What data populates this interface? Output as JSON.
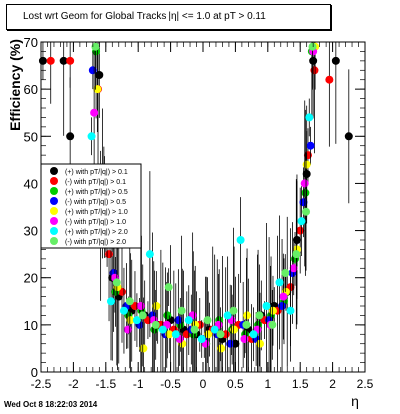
{
  "title": "Lost wrt Geom for Global Tracks",
  "title_suffix": "|η| <= 1.0 at pT > 0.11",
  "footer": "Wed Oct  8 18:22:03 2014",
  "chart_data": {
    "type": "scatter",
    "title": "Lost wrt Geom for Global Tracks",
    "xlabel": "η",
    "ylabel": "Efficiency (%)",
    "xlim": [
      -2.5,
      2.5
    ],
    "ylim": [
      0,
      70
    ],
    "xticks": [
      "-2.5",
      "-2",
      "-1.5",
      "-1",
      "-0.5",
      "0",
      "0.5",
      "1",
      "1.5",
      "2",
      "2.5"
    ],
    "yticks": [
      "0",
      "10",
      "20",
      "30",
      "40",
      "50",
      "60",
      "70"
    ],
    "grid": false,
    "legend_position": "left-middle",
    "series": [
      {
        "name": "(+) with pT/|q|) > 0.1",
        "color": "#000000",
        "x": [
          -2.47,
          -2.15,
          -2.05,
          -1.6,
          -1.5,
          -1.4,
          -1.3,
          -1.1,
          -0.9,
          -0.7,
          -0.5,
          -0.3,
          -0.1,
          0.1,
          0.3,
          0.5,
          0.7,
          0.9,
          1.1,
          1.3,
          1.45,
          1.6,
          1.7,
          2.05,
          2.25
        ],
        "y": [
          66,
          66,
          50,
          63,
          30,
          20,
          16,
          13,
          12,
          10,
          11,
          9,
          8,
          9,
          7,
          6,
          9,
          12,
          14,
          17,
          28,
          42,
          66,
          66,
          50
        ]
      },
      {
        "name": "(-) with pT/|q|) > 0.1",
        "color": "#ff0000",
        "x": [
          -2.35,
          -2.05,
          -1.62,
          -1.45,
          -1.25,
          -1.05,
          -0.85,
          -0.65,
          -0.45,
          -0.25,
          -0.05,
          0.15,
          0.35,
          0.55,
          0.75,
          0.95,
          1.15,
          1.35,
          1.5,
          1.62,
          1.72,
          1.95
        ],
        "y": [
          66,
          66,
          60,
          25,
          17,
          14,
          11,
          10,
          9,
          8,
          10,
          9,
          8,
          10,
          7,
          11,
          13,
          18,
          30,
          46,
          64,
          62
        ]
      },
      {
        "name": "(+) with pT/|q|) > 0.5",
        "color": "#00cc00",
        "x": [
          -1.65,
          -1.52,
          -1.35,
          -1.15,
          -0.95,
          -0.75,
          -0.55,
          -0.35,
          -0.15,
          0.05,
          0.25,
          0.45,
          0.65,
          0.85,
          1.05,
          1.25,
          1.42,
          1.58,
          1.68
        ],
        "y": [
          68,
          35,
          17,
          12,
          13,
          9,
          12,
          10,
          8,
          6,
          11,
          9,
          8,
          10,
          12,
          15,
          24,
          38,
          68
        ]
      },
      {
        "name": "(-) with pT/|q|) > 0.5",
        "color": "#0000ff",
        "x": [
          -1.7,
          -1.55,
          -1.38,
          -1.18,
          -0.98,
          -0.78,
          -0.58,
          -0.38,
          -0.18,
          0.02,
          0.22,
          0.42,
          0.62,
          0.82,
          1.02,
          1.22,
          1.38,
          1.55,
          1.66
        ],
        "y": [
          64,
          40,
          21,
          14,
          10,
          12,
          8,
          11,
          9,
          7,
          8,
          6,
          10,
          7,
          11,
          14,
          21,
          36,
          48
        ]
      },
      {
        "name": "(+) with pT/|q|) > 1.0",
        "color": "#ffff00",
        "x": [
          -1.63,
          -1.48,
          -1.32,
          -1.12,
          -0.92,
          -0.72,
          -0.52,
          -0.32,
          -0.12,
          0.08,
          0.28,
          0.48,
          0.68,
          0.88,
          1.08,
          1.28,
          1.45,
          1.6,
          1.73
        ],
        "y": [
          60,
          28,
          18,
          11,
          5,
          14,
          8,
          6,
          10,
          8,
          5,
          9,
          12,
          6,
          13,
          17,
          26,
          44,
          69
        ]
      },
      {
        "name": "(-) with pT/|q|) > 1.0",
        "color": "#ff00ff",
        "x": [
          -1.68,
          -1.53,
          -1.36,
          -1.16,
          -0.96,
          -0.76,
          -0.56,
          -0.36,
          -0.16,
          0.04,
          0.24,
          0.44,
          0.64,
          0.84,
          1.04,
          1.24,
          1.4,
          1.57,
          1.7
        ],
        "y": [
          55,
          37,
          20,
          9,
          14,
          11,
          10,
          7,
          12,
          6,
          10,
          11,
          7,
          9,
          10,
          16,
          22,
          40,
          68
        ]
      },
      {
        "name": "(+) with pT/|q|) > 2.0",
        "color": "#00ffff",
        "x": [
          -1.72,
          -1.58,
          -1.42,
          -1.22,
          -1.02,
          -0.82,
          -0.62,
          -0.42,
          -0.22,
          -0.02,
          0.18,
          0.38,
          0.58,
          0.78,
          0.98,
          1.18,
          1.35,
          1.52,
          1.64
        ],
        "y": [
          50,
          31,
          15,
          13,
          11,
          25,
          9,
          8,
          11,
          7,
          9,
          12,
          28,
          8,
          14,
          19,
          13,
          32,
          54
        ]
      },
      {
        "name": "(-) with pT/|q|) > 2.0",
        "color": "#66ee66",
        "x": [
          -1.66,
          -1.5,
          -1.33,
          -1.13,
          -0.93,
          -0.73,
          -0.53,
          -0.33,
          -0.13,
          0.07,
          0.27,
          0.47,
          0.67,
          0.87,
          1.07,
          1.27,
          1.44,
          1.59,
          1.69
        ],
        "y": [
          69,
          33,
          19,
          15,
          12,
          10,
          18,
          13,
          9,
          11,
          8,
          13,
          10,
          12,
          10,
          21,
          25,
          34,
          69
        ]
      }
    ]
  }
}
